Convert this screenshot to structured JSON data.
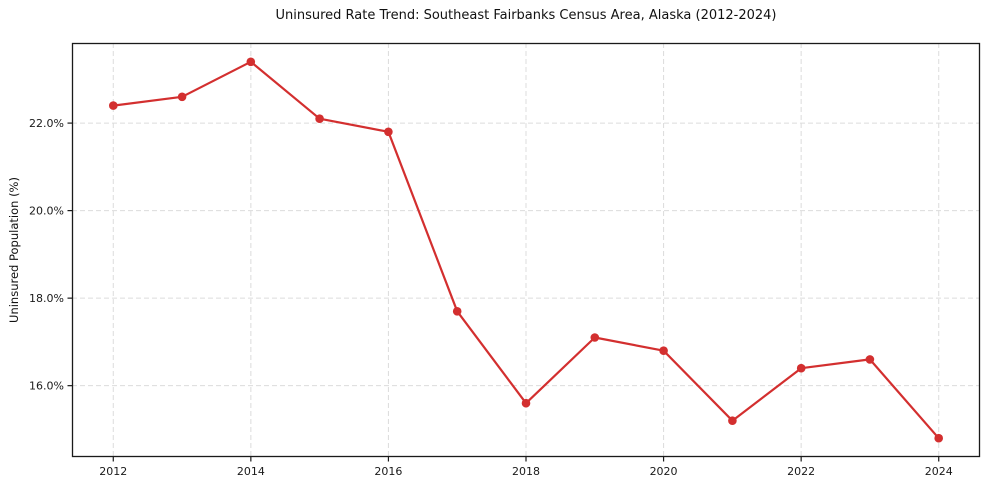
{
  "chart_data": {
    "type": "line",
    "title": "Uninsured Rate Trend: Southeast Fairbanks Census Area, Alaska (2012-2024)",
    "ylabel": "Uninsured Population (%)",
    "xlabel": "",
    "x": [
      2012,
      2013,
      2014,
      2015,
      2016,
      2017,
      2018,
      2019,
      2020,
      2021,
      2022,
      2023,
      2024
    ],
    "values": [
      22.4,
      22.6,
      23.4,
      22.1,
      21.8,
      17.7,
      15.6,
      17.1,
      16.8,
      15.2,
      16.4,
      16.6,
      14.8
    ],
    "series_name": "Uninsured rate",
    "xticks": [
      2012,
      2014,
      2016,
      2018,
      2020,
      2022,
      2024
    ],
    "yticks": [
      {
        "value": 16.0,
        "label": "16.0%"
      },
      {
        "value": 18.0,
        "label": "18.0%"
      },
      {
        "value": 20.0,
        "label": "20.0%"
      },
      {
        "value": 22.0,
        "label": "22.0%"
      }
    ],
    "xlim": [
      2011.4,
      2024.6
    ],
    "ylim": [
      14.37,
      23.83
    ],
    "line_color": "#d32f2f",
    "marker": "circle",
    "marker_color": "#d32f2f",
    "grid": true,
    "grid_color": "#dcdcdc",
    "grid_style": "dashed",
    "axis_color": "#1a1a1a",
    "background_color": "#ffffff",
    "legend_position": "none"
  }
}
